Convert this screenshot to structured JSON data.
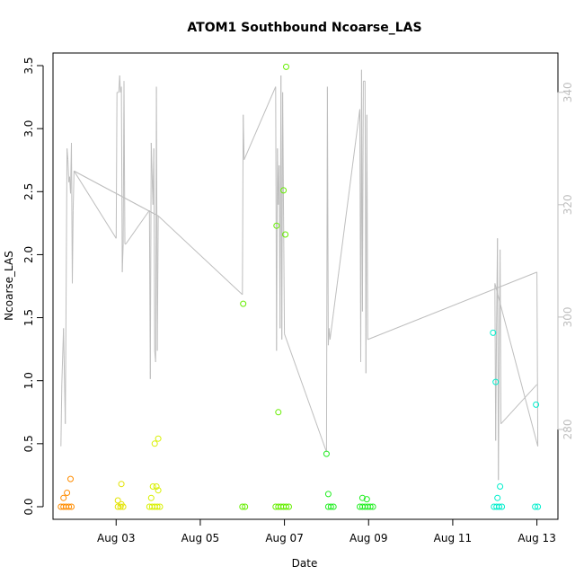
{
  "chart_data": {
    "type": "scatter",
    "title": "ATOM1 Southbound Ncoarse_LAS",
    "xlabel": "Date",
    "ylabel": "Ncoarse_LAS",
    "x_range": [
      "2023-08-01T12:00",
      "2023-08-13T12:00"
    ],
    "ylim": [
      -0.1,
      3.6
    ],
    "y2lim": [
      264,
      347
    ],
    "x_ticks": [
      {
        "x": "2023-08-03",
        "label": "Aug 03"
      },
      {
        "x": "2023-08-05",
        "label": "Aug 05"
      },
      {
        "x": "2023-08-07",
        "label": "Aug 07"
      },
      {
        "x": "2023-08-09",
        "label": "Aug 09"
      },
      {
        "x": "2023-08-11",
        "label": "Aug 11"
      },
      {
        "x": "2023-08-13",
        "label": "Aug 13"
      }
    ],
    "y_ticks": [
      "0.0",
      "0.5",
      "1.0",
      "1.5",
      "2.0",
      "2.5",
      "3.0",
      "3.5"
    ],
    "y2_ticks": [
      "280",
      "300",
      "320",
      "340"
    ],
    "grid": false,
    "legend": "none",
    "colors": {
      "line": "#bebebe",
      "orange": "#ff8c00",
      "yellow": "#e3e300",
      "yellowgreen": "#b4f000",
      "lime": "#66ee00",
      "green": "#22ee22",
      "cyan": "#00eecc"
    },
    "series": [
      {
        "color": "#ff8c00",
        "points": [
          [
            "2023-08-01T16:30",
            0
          ],
          [
            "2023-08-01T18:00",
            0
          ],
          [
            "2023-08-01T19:30",
            0
          ],
          [
            "2023-08-01T21:00",
            0
          ],
          [
            "2023-08-01T22:30",
            0
          ],
          [
            "2023-08-01T18:00",
            0.07
          ],
          [
            "2023-08-01T20:00",
            0.11
          ],
          [
            "2023-08-01T22:00",
            0.22
          ]
        ]
      },
      {
        "color": "#e3e300",
        "points": [
          [
            "2023-08-03T01:00",
            0
          ],
          [
            "2023-08-03T02:30",
            0
          ],
          [
            "2023-08-03T04:00",
            0
          ],
          [
            "2023-08-03T01:00",
            0.05
          ],
          [
            "2023-08-03T03:00",
            0.02
          ],
          [
            "2023-08-03T03:00",
            0.18
          ]
        ]
      },
      {
        "color": "#d8f000",
        "points": [
          [
            "2023-08-03T19:00",
            0
          ],
          [
            "2023-08-03T20:30",
            0
          ],
          [
            "2023-08-03T22:00",
            0
          ],
          [
            "2023-08-03T23:30",
            0
          ],
          [
            "2023-08-04T01:00",
            0
          ],
          [
            "2023-08-03T20:00",
            0.07
          ],
          [
            "2023-08-03T21:00",
            0.16
          ],
          [
            "2023-08-03T23:00",
            0.16
          ],
          [
            "2023-08-04T00:00",
            0.13
          ],
          [
            "2023-08-03T22:00",
            0.5
          ],
          [
            "2023-08-04T00:00",
            0.54
          ]
        ]
      },
      {
        "color": "#66ee00",
        "points": [
          [
            "2023-08-06T00:00",
            0
          ],
          [
            "2023-08-06T01:30",
            0
          ],
          [
            "2023-08-06T19:00",
            0
          ],
          [
            "2023-08-06T20:30",
            0
          ],
          [
            "2023-08-06T22:00",
            0
          ],
          [
            "2023-08-06T23:30",
            0
          ],
          [
            "2023-08-07T01:00",
            0
          ],
          [
            "2023-08-07T02:30",
            0
          ],
          [
            "2023-08-06T00:30",
            1.61
          ],
          [
            "2023-08-06T20:30",
            0.75
          ],
          [
            "2023-08-06T19:30",
            2.23
          ],
          [
            "2023-08-07T00:30",
            2.16
          ],
          [
            "2023-08-06T23:30",
            2.51
          ],
          [
            "2023-08-07T01:00",
            3.49
          ]
        ]
      },
      {
        "color": "#22ee22",
        "points": [
          [
            "2023-08-08T01:00",
            0
          ],
          [
            "2023-08-08T02:30",
            0
          ],
          [
            "2023-08-08T04:00",
            0
          ],
          [
            "2023-08-08T19:00",
            0
          ],
          [
            "2023-08-08T20:30",
            0
          ],
          [
            "2023-08-08T22:00",
            0
          ],
          [
            "2023-08-08T23:30",
            0
          ],
          [
            "2023-08-09T01:00",
            0
          ],
          [
            "2023-08-09T02:30",
            0
          ],
          [
            "2023-08-08T00:00",
            0.42
          ],
          [
            "2023-08-08T01:00",
            0.1
          ],
          [
            "2023-08-08T20:30",
            0.07
          ],
          [
            "2023-08-08T23:00",
            0.06
          ]
        ]
      },
      {
        "color": "#00eecc",
        "points": [
          [
            "2023-08-11T23:30",
            0
          ],
          [
            "2023-08-12T01:00",
            0
          ],
          [
            "2023-08-12T02:30",
            0
          ],
          [
            "2023-08-12T04:00",
            0
          ],
          [
            "2023-08-12T23:00",
            0
          ],
          [
            "2023-08-13T00:30",
            0
          ],
          [
            "2023-08-11T23:00",
            1.38
          ],
          [
            "2023-08-12T00:30",
            0.99
          ],
          [
            "2023-08-12T01:30",
            0.07
          ],
          [
            "2023-08-12T03:00",
            0.16
          ],
          [
            "2023-08-12T23:30",
            0.81
          ]
        ]
      }
    ],
    "line_series": {
      "color": "#bebebe",
      "axis": "right",
      "points": [
        [
          "2023-08-01T16:30",
          277
        ],
        [
          "2023-08-01T17:00",
          288
        ],
        [
          "2023-08-01T18:00",
          298
        ],
        [
          "2023-08-01T19:00",
          281
        ],
        [
          "2023-08-01T20:00",
          330
        ],
        [
          "2023-08-01T20:30",
          328
        ],
        [
          "2023-08-01T21:00",
          324
        ],
        [
          "2023-08-01T21:30",
          325
        ],
        [
          "2023-08-01T22:00",
          322
        ],
        [
          "2023-08-01T22:30",
          331
        ],
        [
          "2023-08-01T23:00",
          306
        ],
        [
          "2023-08-01T23:30",
          319
        ],
        [
          "2023-08-02T00:00",
          326
        ],
        [
          "2023-08-03T00:00",
          314
        ],
        [
          "2023-08-03T00:30",
          340
        ],
        [
          "2023-08-03T01:00",
          340
        ],
        [
          "2023-08-03T01:30",
          340
        ],
        [
          "2023-08-03T02:00",
          343
        ],
        [
          "2023-08-03T02:30",
          340
        ],
        [
          "2023-08-03T03:00",
          341
        ],
        [
          "2023-08-03T03:30",
          308
        ],
        [
          "2023-08-03T04:00",
          313
        ],
        [
          "2023-08-03T04:30",
          342
        ],
        [
          "2023-08-03T05:00",
          313
        ],
        [
          "2023-08-03T05:30",
          313
        ],
        [
          "2023-08-03T19:00",
          319
        ],
        [
          "2023-08-03T19:30",
          289
        ],
        [
          "2023-08-03T20:00",
          331
        ],
        [
          "2023-08-03T21:00",
          320
        ],
        [
          "2023-08-03T21:30",
          330
        ],
        [
          "2023-08-03T22:00",
          294
        ],
        [
          "2023-08-03T22:30",
          292
        ],
        [
          "2023-08-03T23:00",
          341
        ],
        [
          "2023-08-03T23:30",
          294
        ],
        [
          "2023-08-04T00:00",
          318
        ],
        [
          "2023-08-02T00:00",
          326
        ],
        [
          "2023-08-04T00:00",
          318
        ],
        [
          "2023-08-06T00:00",
          304
        ],
        [
          "2023-08-06T00:30",
          336
        ],
        [
          "2023-08-06T01:00",
          328
        ],
        [
          "2023-08-06T19:00",
          341
        ],
        [
          "2023-08-06T19:30",
          294
        ],
        [
          "2023-08-06T20:00",
          330
        ],
        [
          "2023-08-06T20:30",
          320
        ],
        [
          "2023-08-06T21:00",
          327
        ],
        [
          "2023-08-06T21:30",
          298
        ],
        [
          "2023-08-06T22:00",
          343
        ],
        [
          "2023-08-06T22:30",
          296
        ],
        [
          "2023-08-06T23:00",
          340
        ],
        [
          "2023-08-06T23:30",
          318
        ],
        [
          "2023-08-07T00:00",
          297
        ],
        [
          "2023-08-08T00:00",
          276
        ],
        [
          "2023-08-08T00:30",
          341
        ],
        [
          "2023-08-08T01:00",
          295
        ],
        [
          "2023-08-08T01:30",
          298
        ],
        [
          "2023-08-08T02:00",
          296
        ],
        [
          "2023-08-08T19:00",
          337
        ],
        [
          "2023-08-08T19:30",
          292
        ],
        [
          "2023-08-08T20:00",
          344
        ],
        [
          "2023-08-08T20:30",
          301
        ],
        [
          "2023-08-08T21:00",
          342
        ],
        [
          "2023-08-08T22:00",
          342
        ],
        [
          "2023-08-08T22:30",
          290
        ],
        [
          "2023-08-08T23:00",
          336
        ],
        [
          "2023-08-08T23:30",
          296
        ],
        [
          "2023-08-13T00:00",
          308
        ],
        [
          "2023-08-13T00:30",
          277
        ],
        [
          "2023-08-12T00:00",
          306
        ],
        [
          "2023-08-12T00:30",
          278
        ],
        [
          "2023-08-12T01:00",
          299
        ],
        [
          "2023-08-12T01:30",
          314
        ],
        [
          "2023-08-12T02:00",
          271
        ],
        [
          "2023-08-12T02:30",
          292
        ],
        [
          "2023-08-12T03:00",
          312
        ],
        [
          "2023-08-12T03:30",
          281
        ],
        [
          "2023-08-13T00:00",
          288
        ]
      ]
    }
  }
}
